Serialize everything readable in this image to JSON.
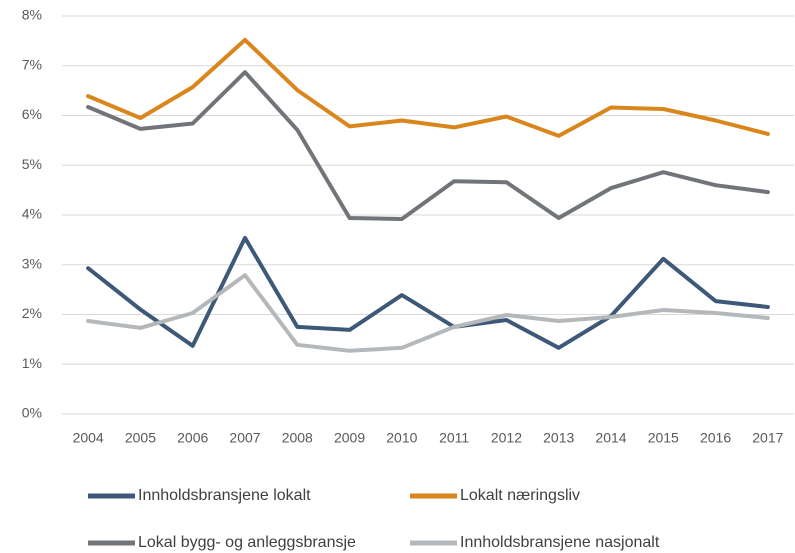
{
  "chart_data": {
    "type": "line",
    "categories": [
      "2004",
      "2005",
      "2006",
      "2007",
      "2008",
      "2009",
      "2010",
      "2011",
      "2012",
      "2013",
      "2014",
      "2015",
      "2016",
      "2017"
    ],
    "series": [
      {
        "name": "Innholdsbransjene lokalt",
        "color": "#3e5878",
        "values": [
          2.93,
          2.1,
          1.37,
          3.54,
          1.75,
          1.69,
          2.39,
          1.75,
          1.89,
          1.33,
          1.97,
          3.12,
          2.27,
          2.15
        ]
      },
      {
        "name": "Lokalt næringsliv",
        "color": "#d9861c",
        "values": [
          6.39,
          5.95,
          6.57,
          7.52,
          6.51,
          5.78,
          5.9,
          5.76,
          5.98,
          5.59,
          6.16,
          6.13,
          5.9,
          5.63
        ]
      },
      {
        "name": "Lokal bygg- og anleggsbransje",
        "color": "#71757a",
        "values": [
          6.17,
          5.73,
          5.84,
          6.87,
          5.71,
          3.94,
          3.92,
          4.68,
          4.66,
          3.94,
          4.54,
          4.86,
          4.6,
          4.46
        ]
      },
      {
        "name": "Innholdsbransjene nasjonalt",
        "color": "#b5b8bb",
        "values": [
          1.87,
          1.73,
          2.03,
          2.79,
          1.39,
          1.27,
          1.33,
          1.75,
          1.99,
          1.87,
          1.95,
          2.09,
          2.03,
          1.93
        ]
      }
    ],
    "ylim": [
      0,
      8
    ],
    "yticks": [
      {
        "value": 0,
        "label": "0%"
      },
      {
        "value": 1,
        "label": "1%"
      },
      {
        "value": 2,
        "label": "2%"
      },
      {
        "value": 3,
        "label": "3%"
      },
      {
        "value": 4,
        "label": "4%"
      },
      {
        "value": 5,
        "label": "5%"
      },
      {
        "value": 6,
        "label": "6%"
      },
      {
        "value": 7,
        "label": "7%"
      },
      {
        "value": 8,
        "label": "8%"
      }
    ],
    "grid": true,
    "legend": "bottom"
  }
}
